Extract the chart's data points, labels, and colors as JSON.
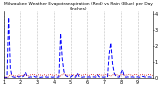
{
  "title": "Milwaukee Weather Evapotranspiration (Red) vs Rain (Blue) per Day (Inches)",
  "ylim": [
    0,
    4.2
  ],
  "background_color": "#ffffff",
  "rain_color": "#0000ff",
  "et_color": "#cc0000",
  "grid_color": "#888888",
  "rain": [
    0.02,
    0.03,
    0.02,
    3.8,
    0.6,
    0.08,
    0.05,
    0.03,
    0.12,
    0.05,
    0.08,
    0.04,
    0.12,
    0.35,
    0.08,
    0.03,
    0.06,
    0.04,
    0.1,
    0.05,
    0.06,
    0.04,
    0.03,
    0.05,
    0.04,
    0.06,
    0.04,
    0.05,
    0.06,
    0.04,
    0.05,
    0.06,
    0.04,
    0.05,
    2.8,
    1.2,
    0.4,
    0.15,
    0.08,
    0.06,
    0.04,
    0.15,
    0.06,
    0.04,
    0.3,
    0.08,
    0.05,
    0.04,
    0.06,
    0.04,
    0.05,
    0.06,
    0.04,
    0.05,
    0.06,
    0.04,
    0.2,
    0.06,
    0.04,
    0.05,
    0.04,
    0.06,
    0.04,
    1.5,
    2.2,
    0.9,
    0.3,
    0.1,
    0.06,
    0.04,
    0.3,
    0.5,
    0.08,
    0.04,
    0.06,
    0.04,
    0.05,
    0.06,
    0.04,
    0.05,
    0.06,
    0.04,
    0.05,
    0.1,
    0.06,
    0.04,
    0.05,
    0.06,
    0.04,
    0.05
  ],
  "et": [
    0.05,
    0.04,
    0.05,
    0.06,
    0.2,
    0.18,
    0.15,
    0.12,
    0.1,
    0.18,
    0.15,
    0.12,
    0.18,
    0.2,
    0.15,
    0.12,
    0.18,
    0.2,
    0.22,
    0.18,
    0.15,
    0.2,
    0.18,
    0.15,
    0.2,
    0.18,
    0.15,
    0.2,
    0.22,
    0.18,
    0.15,
    0.2,
    0.18,
    0.15,
    0.12,
    0.2,
    0.25,
    0.2,
    0.18,
    0.15,
    0.2,
    0.22,
    0.18,
    0.15,
    0.2,
    0.22,
    0.18,
    0.15,
    0.2,
    0.22,
    0.18,
    0.15,
    0.2,
    0.22,
    0.18,
    0.15,
    0.2,
    0.22,
    0.18,
    0.15,
    0.2,
    0.22,
    0.18,
    0.15,
    0.12,
    0.18,
    0.22,
    0.2,
    0.18,
    0.15,
    0.2,
    0.22,
    0.18,
    0.15,
    0.2,
    0.22,
    0.18,
    0.15,
    0.2,
    0.22,
    0.18,
    0.15,
    0.2,
    0.22,
    0.18,
    0.15,
    0.2,
    0.22,
    0.18,
    0.15
  ],
  "xtick_positions": [
    0,
    10,
    20,
    30,
    40,
    50,
    60,
    70,
    80
  ],
  "xtick_labels": [
    "1",
    "2",
    "3",
    "4",
    "5",
    "6",
    "7",
    "8",
    "9"
  ],
  "ytick_positions": [
    0,
    1,
    2,
    3,
    4
  ],
  "ytick_labels": [
    "0",
    "1",
    "2",
    "3",
    "4"
  ],
  "title_fontsize": 3.2,
  "tick_fontsize": 3.5,
  "linewidth_rain": 0.7,
  "linewidth_et": 0.6
}
